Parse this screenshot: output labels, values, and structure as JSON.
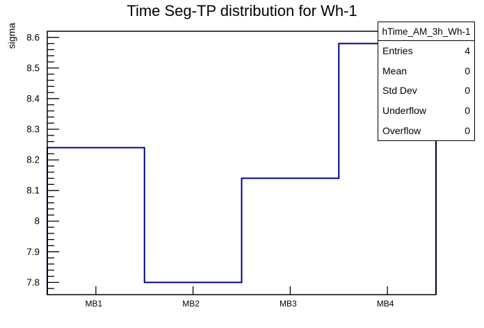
{
  "window": {
    "background": "#ffffff"
  },
  "chart_data": {
    "type": "bar",
    "style": "root-step-outline-histogram",
    "title": "Time Seg-TP distribution for Wh-1",
    "ylabel": "sigma",
    "xlabel": "",
    "categories": [
      "MB1",
      "MB2",
      "MB3",
      "MB4"
    ],
    "values": [
      8.24,
      7.8,
      8.14,
      8.58
    ],
    "ylim": [
      7.76,
      8.62
    ],
    "yticks": [
      "7.8",
      "7.9",
      "8",
      "8.1",
      "8.2",
      "8.3",
      "8.4",
      "8.5",
      "8.6"
    ],
    "y_minor_step": 0.02,
    "grid": false,
    "legend_position": "none",
    "line_color": "#00008b",
    "frame_color": "#000000",
    "stats": {
      "header": "hTime_AM_3h_Wh-1",
      "rows": [
        {
          "label": "Entries",
          "value": "4"
        },
        {
          "label": "Mean",
          "value": "0"
        },
        {
          "label": "Std Dev",
          "value": "0"
        },
        {
          "label": "Underflow",
          "value": "0"
        },
        {
          "label": "Overflow",
          "value": "0"
        }
      ]
    }
  }
}
